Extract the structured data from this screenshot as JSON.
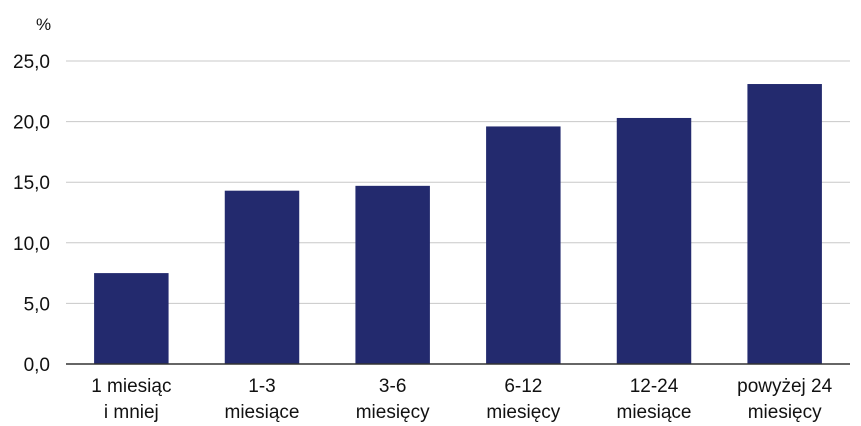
{
  "chart_data": {
    "type": "bar",
    "unit_label": "%",
    "categories": [
      [
        "1 miesiąc",
        "i mniej"
      ],
      [
        "1-3",
        "miesiące"
      ],
      [
        "3-6",
        "miesięcy"
      ],
      [
        "6-12",
        "miesięcy"
      ],
      [
        "12-24",
        "miesiące"
      ],
      [
        "powyżej 24",
        "miesięcy"
      ]
    ],
    "values": [
      7.5,
      14.3,
      14.7,
      19.6,
      20.3,
      23.1
    ],
    "yticks": [
      "0,0",
      "5,0",
      "10,0",
      "15,0",
      "20,0",
      "25,0"
    ],
    "ylim": [
      0,
      25
    ],
    "grid": true,
    "colors": {
      "bar": "#232a6e",
      "grid": "#c8c8c8",
      "axis": "#333333"
    }
  }
}
